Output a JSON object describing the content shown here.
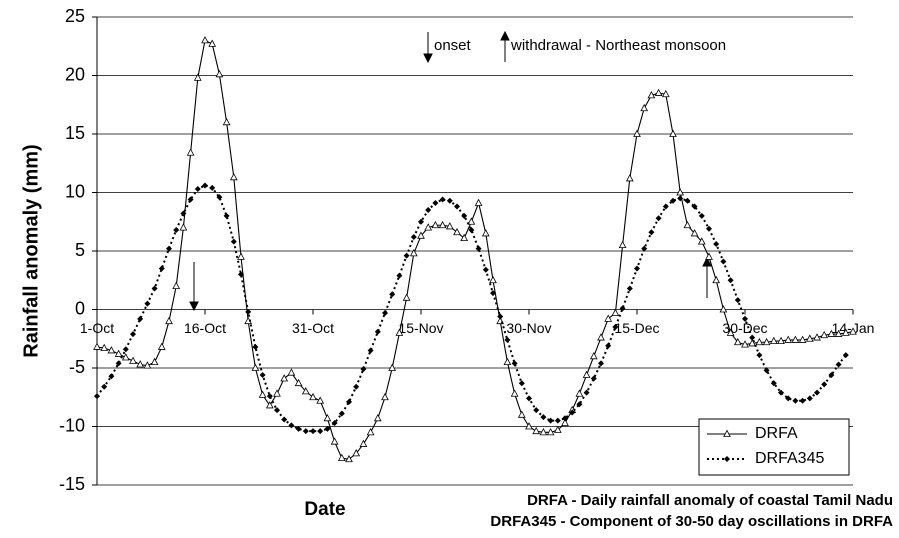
{
  "chart_data": {
    "type": "line",
    "x_label": "Date",
    "y_label": "Rainfall anomaly (mm)",
    "annotations": [
      "onset",
      "withdrawal - Northeast monsoon",
      "DRFA - Daily rainfall anomaly of coastal Tamil Nadu",
      "DRFA345 - Component of 30-50 day oscillations in DRFA"
    ],
    "x": [
      0,
      1,
      2,
      3,
      4,
      5,
      6,
      7,
      8,
      9,
      10,
      11,
      12,
      13,
      14,
      15,
      16,
      17,
      18,
      19,
      20,
      21,
      22,
      23,
      24,
      25,
      26,
      27,
      28,
      29,
      30,
      31,
      32,
      33,
      34,
      35,
      36,
      37,
      38,
      39,
      40,
      41,
      42,
      43,
      44,
      45,
      46,
      47,
      48,
      49,
      50,
      51,
      52,
      53,
      54,
      55,
      56,
      57,
      58,
      59,
      60,
      61,
      62,
      63,
      64,
      65,
      66,
      67,
      68,
      69,
      70,
      71,
      72,
      73,
      74,
      75,
      76,
      77,
      78,
      79,
      80,
      81,
      82,
      83,
      84,
      85,
      86,
      87,
      88,
      89,
      90,
      91,
      92,
      93,
      94,
      95,
      96,
      97,
      98,
      99,
      100,
      101,
      102,
      103,
      104,
      105
    ],
    "xlim": [
      0,
      105
    ],
    "xticks": [
      {
        "value": 0,
        "label": "1-Oct"
      },
      {
        "value": 15,
        "label": "16-Oct"
      },
      {
        "value": 30,
        "label": "31-Oct"
      },
      {
        "value": 45,
        "label": "15-Nov"
      },
      {
        "value": 60,
        "label": "30-Nov"
      },
      {
        "value": 75,
        "label": "15-Dec"
      },
      {
        "value": 90,
        "label": "30-Dec"
      },
      {
        "value": 105,
        "label": "14-Jan"
      }
    ],
    "ylim": [
      -15,
      25
    ],
    "yticks": [
      -15,
      -10,
      -5,
      0,
      5,
      10,
      15,
      20,
      25
    ],
    "grid": true,
    "legend": "lower-right",
    "series": [
      {
        "name": "DRFA",
        "color": "#000000",
        "marker": "triangle",
        "line": "solid",
        "values": [
          -3.2,
          -3.3,
          -3.5,
          -3.8,
          -4.1,
          -4.4,
          -4.7,
          -4.8,
          -4.5,
          -3.2,
          -1,
          2,
          7,
          13.4,
          19.8,
          23,
          22.7,
          20.1,
          16,
          11.3,
          4.5,
          -1,
          -5,
          -7.3,
          -8.2,
          -7.2,
          -5.9,
          -5.4,
          -6.3,
          -7,
          -7.5,
          -7.8,
          -9.3,
          -11.3,
          -12.7,
          -12.8,
          -12.3,
          -11.5,
          -10.5,
          -9.3,
          -7.5,
          -5,
          -2,
          1,
          4.8,
          6.3,
          7,
          7.2,
          7.2,
          7.1,
          6.6,
          6.1,
          7.5,
          9.1,
          6.5,
          2.5,
          -1,
          -4.5,
          -7.2,
          -9,
          -10,
          -10.4,
          -10.5,
          -10.5,
          -10.3,
          -9.7,
          -8.6,
          -7.2,
          -5.6,
          -4,
          -2.4,
          -0.8,
          -0.3,
          5.5,
          11.2,
          15,
          17.2,
          18.3,
          18.5,
          18.4,
          15,
          10,
          7.2,
          6.5,
          5.8,
          4.5,
          2.5,
          0,
          -2,
          -2.8,
          -3,
          -2.9,
          -2.8,
          -2.8,
          -2.7,
          -2.7,
          -2.6,
          -2.6,
          -2.6,
          -2.5,
          -2.4,
          -2.2,
          -2.1,
          -2.1,
          -2,
          -1.9
        ]
      },
      {
        "name": "DRFA345",
        "color": "#000000",
        "marker": "diamond",
        "line": "dotted",
        "values": [
          -7.4,
          -6.6,
          -5.7,
          -4.6,
          -3.4,
          -2.1,
          -0.8,
          0.5,
          1.8,
          3.5,
          5.2,
          6.8,
          8.2,
          9.4,
          10.3,
          10.6,
          10.4,
          9.6,
          8,
          5.8,
          3,
          -0.2,
          -3.2,
          -5.6,
          -7.4,
          -8.6,
          -9.4,
          -9.9,
          -10.2,
          -10.4,
          -10.4,
          -10.4,
          -10.2,
          -9.7,
          -8.9,
          -7.9,
          -6.6,
          -5.1,
          -3.5,
          -1.9,
          -0.3,
          1.3,
          2.9,
          4.6,
          6.2,
          7.5,
          8.5,
          9.1,
          9.4,
          9.3,
          8.8,
          8,
          6.8,
          5.2,
          3.4,
          1.4,
          -0.6,
          -2.6,
          -4.6,
          -6.3,
          -7.6,
          -8.6,
          -9.2,
          -9.5,
          -9.5,
          -9.3,
          -8.8,
          -8.1,
          -7.1,
          -5.9,
          -4.6,
          -3.1,
          -1.5,
          0.1,
          1.8,
          3.5,
          5.2,
          6.6,
          7.8,
          8.8,
          9.3,
          9.5,
          9.3,
          8.8,
          8,
          6.9,
          5.6,
          4.1,
          2.5,
          0.8,
          -0.8,
          -2.4,
          -3.9,
          -5.2,
          -6.3,
          -7.1,
          -7.6,
          -7.8,
          -7.8,
          -7.6,
          -7.1,
          -6.4,
          -5.6,
          -4.7,
          -3.9,
          null
        ]
      }
    ]
  }
}
